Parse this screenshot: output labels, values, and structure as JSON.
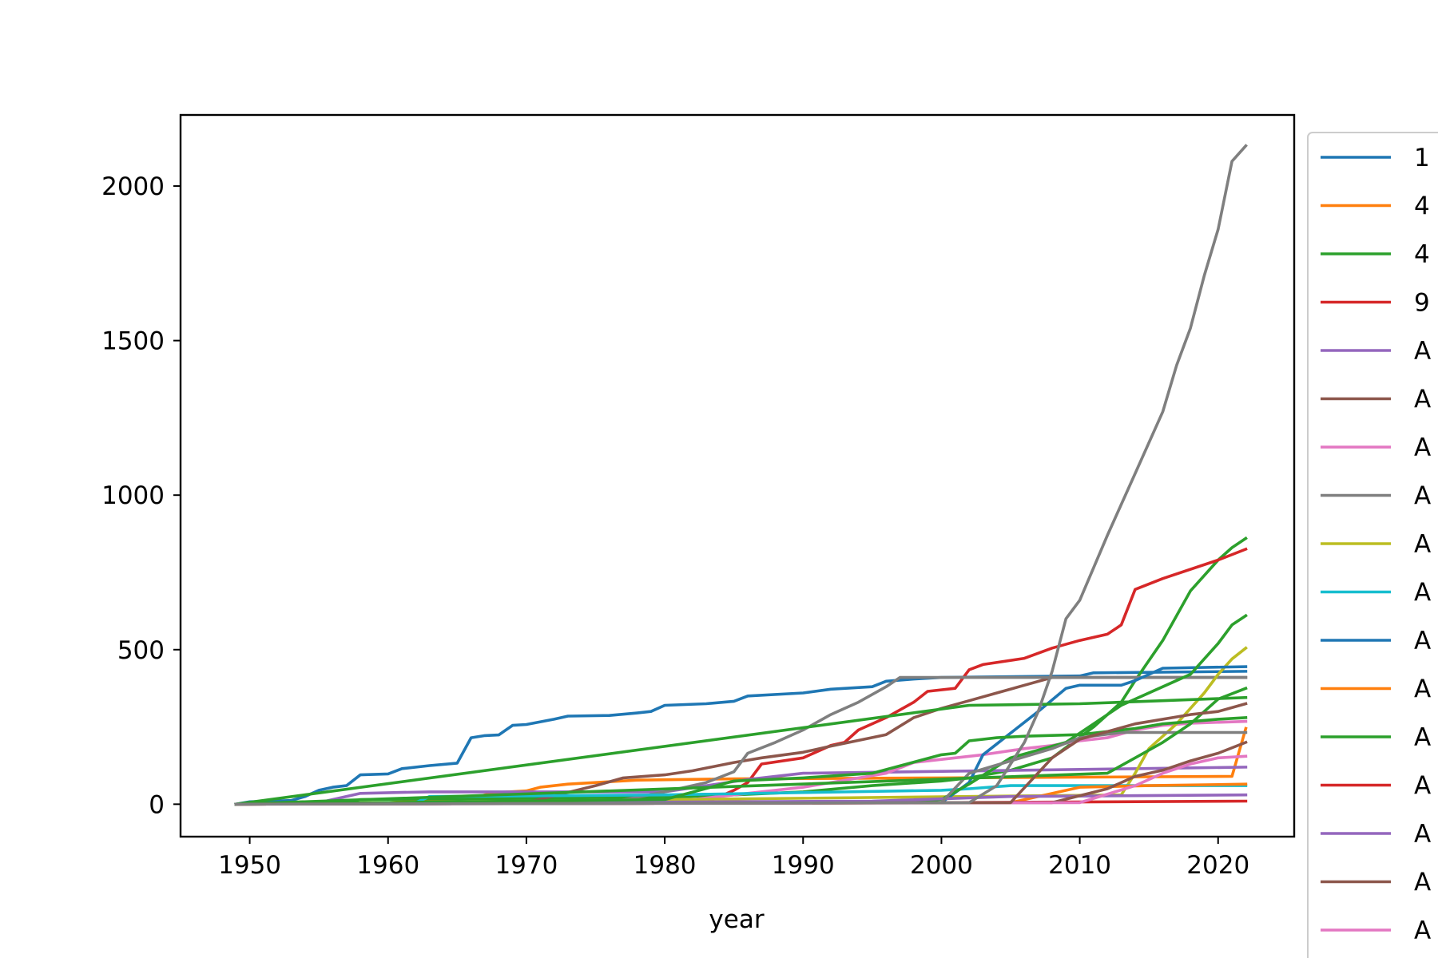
{
  "chart_data": {
    "type": "line",
    "title": "",
    "xlabel": "year",
    "ylabel": "",
    "xlim": [
      1945,
      2025.5
    ],
    "ylim": [
      -105,
      2230
    ],
    "x_ticks": [
      1950,
      1960,
      1970,
      1980,
      1990,
      2000,
      2010,
      2020
    ],
    "y_ticks": [
      0,
      500,
      1000,
      1500,
      2000
    ],
    "grid": false,
    "legend": {
      "placement": "right (outside, clipped)",
      "labels": [
        "1",
        "4",
        "4",
        "9",
        "A",
        "A",
        "A",
        "A",
        "A",
        "A",
        "A",
        "A",
        "A",
        "A",
        "A",
        "A",
        "A"
      ]
    },
    "series": [
      {
        "color": "#1f77b4",
        "points": [
          [
            1949,
            0
          ],
          [
            1950,
            8
          ],
          [
            1953,
            12
          ],
          [
            1954,
            25
          ],
          [
            1955,
            45
          ],
          [
            1956,
            55
          ],
          [
            1957,
            60
          ],
          [
            1958,
            95
          ],
          [
            1960,
            98
          ],
          [
            1961,
            115
          ],
          [
            1963,
            125
          ],
          [
            1965,
            133
          ],
          [
            1966,
            215
          ],
          [
            1967,
            222
          ],
          [
            1968,
            224
          ],
          [
            1969,
            255
          ],
          [
            1970,
            258
          ],
          [
            1972,
            275
          ],
          [
            1973,
            285
          ],
          [
            1976,
            287
          ],
          [
            1978,
            295
          ],
          [
            1979,
            300
          ],
          [
            1980,
            320
          ],
          [
            1983,
            325
          ],
          [
            1985,
            333
          ],
          [
            1986,
            350
          ],
          [
            1990,
            360
          ],
          [
            1992,
            372
          ],
          [
            1995,
            380
          ],
          [
            1996,
            398
          ],
          [
            1998,
            405
          ],
          [
            2000,
            410
          ],
          [
            2010,
            415
          ],
          [
            2011,
            425
          ],
          [
            2022,
            430
          ]
        ]
      },
      {
        "color": "#ff7f0e",
        "points": [
          [
            1949,
            0
          ],
          [
            1960,
            5
          ],
          [
            1964,
            15
          ],
          [
            1966,
            20
          ],
          [
            1967,
            30
          ],
          [
            1968,
            38
          ],
          [
            1970,
            43
          ],
          [
            1971,
            55
          ],
          [
            1973,
            65
          ],
          [
            1975,
            70
          ],
          [
            1978,
            78
          ],
          [
            1985,
            82
          ],
          [
            2000,
            85
          ],
          [
            2021,
            90
          ],
          [
            2022,
            245
          ]
        ]
      },
      {
        "color": "#2ca02c",
        "points": [
          [
            1949,
            0
          ],
          [
            1957,
            5
          ],
          [
            1958,
            15
          ],
          [
            1975,
            20
          ],
          [
            1980,
            22
          ],
          [
            1985,
            30
          ],
          [
            1990,
            40
          ],
          [
            1995,
            60
          ],
          [
            2000,
            75
          ],
          [
            2002,
            85
          ],
          [
            2005,
            110
          ],
          [
            2008,
            150
          ],
          [
            2011,
            250
          ],
          [
            2013,
            330
          ],
          [
            2014,
            400
          ],
          [
            2016,
            530
          ],
          [
            2018,
            690
          ],
          [
            2020,
            790
          ],
          [
            2021,
            830
          ],
          [
            2022,
            860
          ]
        ]
      },
      {
        "color": "#d62728",
        "points": [
          [
            1949,
            0
          ],
          [
            1983,
            5
          ],
          [
            1985,
            45
          ],
          [
            1986,
            70
          ],
          [
            1987,
            130
          ],
          [
            1990,
            150
          ],
          [
            1992,
            190
          ],
          [
            1993,
            200
          ],
          [
            1994,
            240
          ],
          [
            1996,
            280
          ],
          [
            1998,
            330
          ],
          [
            1999,
            365
          ],
          [
            2001,
            375
          ],
          [
            2002,
            435
          ],
          [
            2003,
            452
          ],
          [
            2006,
            472
          ],
          [
            2008,
            505
          ],
          [
            2010,
            530
          ],
          [
            2012,
            550
          ],
          [
            2013,
            580
          ],
          [
            2014,
            695
          ],
          [
            2016,
            730
          ],
          [
            2020,
            790
          ],
          [
            2022,
            825
          ]
        ]
      },
      {
        "color": "#9467bd",
        "points": [
          [
            1949,
            0
          ],
          [
            1955,
            5
          ],
          [
            1956,
            15
          ],
          [
            1958,
            35
          ],
          [
            1961,
            38
          ],
          [
            1963,
            40
          ],
          [
            1980,
            40
          ],
          [
            1986,
            80
          ],
          [
            1990,
            100
          ],
          [
            2022,
            120
          ]
        ]
      },
      {
        "color": "#8c564b",
        "points": [
          [
            1949,
            0
          ],
          [
            1970,
            5
          ],
          [
            1975,
            60
          ],
          [
            1977,
            85
          ],
          [
            1980,
            95
          ],
          [
            1982,
            108
          ],
          [
            1985,
            135
          ],
          [
            1987,
            150
          ],
          [
            1990,
            168
          ],
          [
            1992,
            188
          ],
          [
            1996,
            225
          ],
          [
            1998,
            280
          ],
          [
            2000,
            310
          ],
          [
            2002,
            335
          ],
          [
            2004,
            360
          ],
          [
            2006,
            385
          ],
          [
            2008,
            410
          ],
          [
            2022,
            410
          ]
        ]
      },
      {
        "color": "#e377c2",
        "points": [
          [
            1949,
            0
          ],
          [
            1980,
            5
          ],
          [
            1985,
            30
          ],
          [
            1990,
            55
          ],
          [
            1996,
            100
          ],
          [
            1998,
            135
          ],
          [
            2001,
            150
          ],
          [
            2003,
            160
          ],
          [
            2006,
            180
          ],
          [
            2008,
            190
          ],
          [
            2010,
            205
          ],
          [
            2012,
            215
          ],
          [
            2014,
            240
          ],
          [
            2016,
            255
          ],
          [
            2018,
            262
          ],
          [
            2022,
            268
          ]
        ]
      },
      {
        "color": "#7f7f7f",
        "points": [
          [
            1949,
            0
          ],
          [
            1976,
            5
          ],
          [
            1980,
            40
          ],
          [
            1983,
            70
          ],
          [
            1985,
            105
          ],
          [
            1986,
            165
          ],
          [
            1988,
            200
          ],
          [
            1990,
            240
          ],
          [
            1992,
            290
          ],
          [
            1994,
            330
          ],
          [
            1996,
            380
          ],
          [
            1997,
            410
          ],
          [
            2022,
            410
          ]
        ]
      },
      {
        "color": "#bcbd22",
        "points": [
          [
            1949,
            0
          ],
          [
            2013,
            30
          ],
          [
            2014,
            100
          ],
          [
            2015,
            180
          ],
          [
            2017,
            260
          ],
          [
            2018,
            310
          ],
          [
            2019,
            360
          ],
          [
            2020,
            420
          ],
          [
            2021,
            470
          ],
          [
            2022,
            505
          ]
        ]
      },
      {
        "color": "#17becf",
        "points": [
          [
            1949,
            0
          ],
          [
            1962,
            5
          ],
          [
            1963,
            25
          ],
          [
            1980,
            30
          ],
          [
            2000,
            45
          ],
          [
            2002,
            50
          ],
          [
            2005,
            60
          ],
          [
            2022,
            60
          ]
        ]
      },
      {
        "color": "#1f77b4",
        "points": [
          [
            1949,
            0
          ],
          [
            2000,
            5
          ],
          [
            2002,
            70
          ],
          [
            2003,
            160
          ],
          [
            2005,
            230
          ],
          [
            2007,
            300
          ],
          [
            2009,
            375
          ],
          [
            2010,
            385
          ],
          [
            2013,
            385
          ],
          [
            2014,
            400
          ],
          [
            2016,
            440
          ],
          [
            2022,
            445
          ]
        ]
      },
      {
        "color": "#ff7f0e",
        "points": [
          [
            1949,
            0
          ],
          [
            2005,
            5
          ],
          [
            2010,
            55
          ],
          [
            2015,
            60
          ],
          [
            2022,
            65
          ]
        ]
      },
      {
        "color": "#2ca02c",
        "points": [
          [
            1949,
            0
          ],
          [
            1995,
            5
          ],
          [
            2000,
            15
          ],
          [
            2002,
            65
          ],
          [
            2005,
            150
          ],
          [
            2007,
            175
          ],
          [
            2009,
            200
          ],
          [
            2011,
            260
          ],
          [
            2013,
            320
          ],
          [
            2016,
            380
          ],
          [
            2018,
            420
          ],
          [
            2020,
            520
          ],
          [
            2021,
            580
          ],
          [
            2022,
            610
          ]
        ]
      },
      {
        "color": "#d62728",
        "points": [
          [
            1949,
            0
          ],
          [
            2000,
            5
          ],
          [
            2022,
            10
          ]
        ]
      },
      {
        "color": "#9467bd",
        "points": [
          [
            1949,
            0
          ],
          [
            1995,
            10
          ],
          [
            2005,
            25
          ],
          [
            2022,
            30
          ]
        ]
      },
      {
        "color": "#8c564b",
        "points": [
          [
            1949,
            0
          ],
          [
            2008,
            5
          ],
          [
            2012,
            50
          ],
          [
            2014,
            90
          ],
          [
            2016,
            110
          ],
          [
            2018,
            140
          ],
          [
            2020,
            165
          ],
          [
            2022,
            200
          ]
        ]
      },
      {
        "color": "#e377c2",
        "points": [
          [
            1949,
            0
          ],
          [
            2010,
            5
          ],
          [
            2014,
            60
          ],
          [
            2016,
            100
          ],
          [
            2018,
            130
          ],
          [
            2020,
            150
          ],
          [
            2022,
            155
          ]
        ]
      },
      {
        "color": "#7f7f7f",
        "points": [
          [
            1949,
            0
          ],
          [
            2000,
            5
          ],
          [
            2002,
            100
          ],
          [
            2005,
            140
          ],
          [
            2008,
            180
          ],
          [
            2010,
            215
          ],
          [
            2013,
            232
          ],
          [
            2022,
            232
          ]
        ]
      },
      {
        "color": "#2ca02c",
        "points": [
          [
            1949,
            0
          ],
          [
            1980,
            15
          ],
          [
            1985,
            75
          ],
          [
            1990,
            85
          ],
          [
            1995,
            100
          ],
          [
            2000,
            160
          ],
          [
            2001,
            165
          ],
          [
            2002,
            205
          ],
          [
            2004,
            215
          ],
          [
            2006,
            220
          ],
          [
            2010,
            225
          ],
          [
            2014,
            245
          ],
          [
            2016,
            260
          ],
          [
            2020,
            275
          ],
          [
            2022,
            280
          ]
        ]
      },
      {
        "color": "#2ca02c",
        "points": [
          [
            1949,
            0
          ],
          [
            2002,
            320
          ],
          [
            2010,
            325
          ],
          [
            2016,
            335
          ],
          [
            2022,
            345
          ]
        ]
      },
      {
        "color": "#2ca02c",
        "points": [
          [
            1949,
            0
          ],
          [
            2012,
            100
          ],
          [
            2014,
            150
          ],
          [
            2016,
            200
          ],
          [
            2018,
            260
          ],
          [
            2020,
            340
          ],
          [
            2022,
            375
          ]
        ]
      },
      {
        "color": "#8c564b",
        "points": [
          [
            1949,
            0
          ],
          [
            2005,
            5
          ],
          [
            2008,
            150
          ],
          [
            2010,
            210
          ],
          [
            2014,
            260
          ],
          [
            2018,
            290
          ],
          [
            2020,
            300
          ],
          [
            2022,
            325
          ]
        ]
      },
      {
        "color": "#7f7f7f",
        "points": [
          [
            1949,
            0
          ],
          [
            2002,
            5
          ],
          [
            2004,
            60
          ],
          [
            2006,
            200
          ],
          [
            2007,
            300
          ],
          [
            2008,
            430
          ],
          [
            2009,
            600
          ],
          [
            2010,
            660
          ],
          [
            2012,
            870
          ],
          [
            2014,
            1070
          ],
          [
            2016,
            1270
          ],
          [
            2017,
            1420
          ],
          [
            2018,
            1540
          ],
          [
            2019,
            1710
          ],
          [
            2020,
            1860
          ],
          [
            2021,
            2080
          ],
          [
            2022,
            2130
          ]
        ]
      }
    ]
  }
}
